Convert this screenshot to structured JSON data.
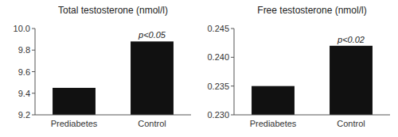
{
  "chart_data": [
    {
      "type": "bar",
      "title": "Total testosterone (nmol/l)",
      "categories": [
        "Prediabetes",
        "Control"
      ],
      "values": [
        9.45,
        9.88
      ],
      "color": "#111111",
      "ylim": [
        9.2,
        10.0
      ],
      "yticks": [
        9.2,
        9.4,
        9.6,
        9.8,
        {
          "value": 10.0,
          "label": "10.0"
        }
      ],
      "annotation": "p<0.05",
      "grid": false
    },
    {
      "type": "bar",
      "title": "Free testosterone (nmol/l)",
      "categories": [
        "Prediabetes",
        "Control"
      ],
      "values": [
        0.235,
        0.242
      ],
      "color": "#111111",
      "ylim": [
        0.23,
        0.245
      ],
      "yticks": [
        {
          "value": 0.23,
          "label": "0.230"
        },
        0.235,
        {
          "value": 0.24,
          "label": "0.240"
        },
        0.245
      ],
      "annotation": "p<0.02",
      "grid": false
    }
  ]
}
